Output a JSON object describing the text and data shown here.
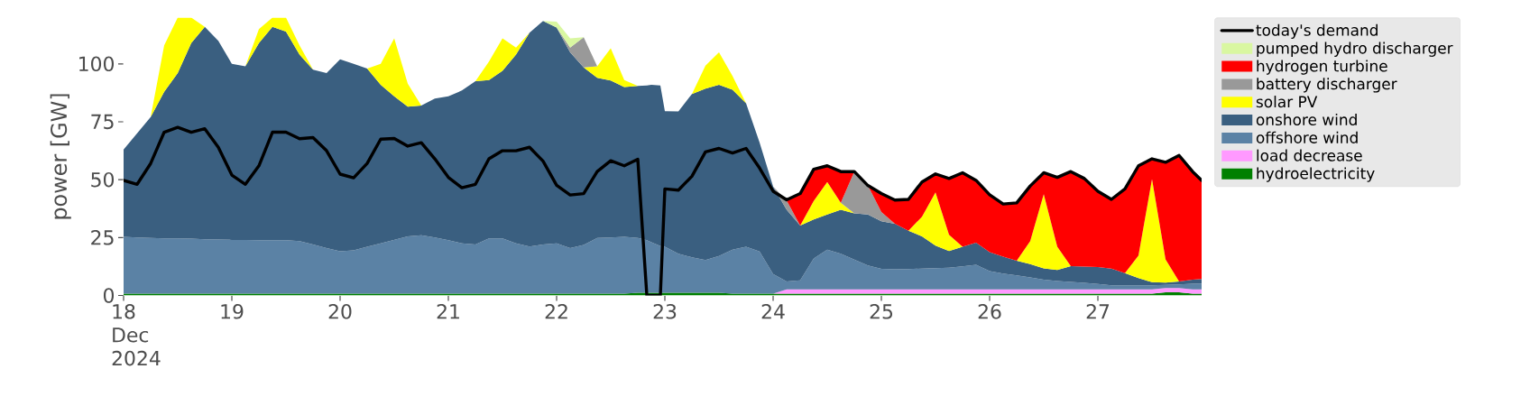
{
  "chart_data": {
    "type": "area",
    "stacked": true,
    "ylabel": "power [GW]",
    "legend": "right",
    "x": [
      "2024-12-18T00:00",
      "2024-12-18T03:00",
      "2024-12-18T06:00",
      "2024-12-18T09:00",
      "2024-12-18T12:00",
      "2024-12-18T15:00",
      "2024-12-18T18:00",
      "2024-12-18T21:00",
      "2024-12-19T00:00",
      "2024-12-19T03:00",
      "2024-12-19T06:00",
      "2024-12-19T09:00",
      "2024-12-19T12:00",
      "2024-12-19T15:00",
      "2024-12-19T18:00",
      "2024-12-19T21:00",
      "2024-12-20T00:00",
      "2024-12-20T03:00",
      "2024-12-20T06:00",
      "2024-12-20T09:00",
      "2024-12-20T12:00",
      "2024-12-20T15:00",
      "2024-12-20T18:00",
      "2024-12-20T21:00",
      "2024-12-21T00:00",
      "2024-12-21T03:00",
      "2024-12-21T06:00",
      "2024-12-21T09:00",
      "2024-12-21T12:00",
      "2024-12-21T15:00",
      "2024-12-21T18:00",
      "2024-12-21T21:00",
      "2024-12-22T00:00",
      "2024-12-22T03:00",
      "2024-12-22T06:00",
      "2024-12-22T09:00",
      "2024-12-22T12:00",
      "2024-12-22T15:00",
      "2024-12-22T18:00",
      "2024-12-22T20:00",
      "2024-12-22T21:00",
      "2024-12-22T23:00",
      "2024-12-23T00:00",
      "2024-12-23T03:00",
      "2024-12-23T06:00",
      "2024-12-23T09:00",
      "2024-12-23T12:00",
      "2024-12-23T15:00",
      "2024-12-23T18:00",
      "2024-12-23T21:00",
      "2024-12-24T00:00",
      "2024-12-24T03:00",
      "2024-12-24T06:00",
      "2024-12-24T09:00",
      "2024-12-24T12:00",
      "2024-12-24T15:00",
      "2024-12-24T18:00",
      "2024-12-24T21:00",
      "2024-12-25T00:00",
      "2024-12-25T03:00",
      "2024-12-25T06:00",
      "2024-12-25T09:00",
      "2024-12-25T12:00",
      "2024-12-25T15:00",
      "2024-12-25T18:00",
      "2024-12-25T21:00",
      "2024-12-26T00:00",
      "2024-12-26T03:00",
      "2024-12-26T06:00",
      "2024-12-26T09:00",
      "2024-12-26T12:00",
      "2024-12-26T15:00",
      "2024-12-26T18:00",
      "2024-12-26T21:00",
      "2024-12-27T00:00",
      "2024-12-27T03:00",
      "2024-12-27T06:00",
      "2024-12-27T09:00",
      "2024-12-27T12:00",
      "2024-12-27T15:00",
      "2024-12-27T18:00",
      "2024-12-27T21:00",
      "2024-12-27T23:00"
    ],
    "xlim": [
      "2024-12-18T00:00",
      "2024-12-27T23:00"
    ],
    "xticks": [
      {
        "value": "2024-12-18",
        "label": "18 Dec 2024"
      },
      {
        "value": "2024-12-19",
        "label": "19"
      },
      {
        "value": "2024-12-20",
        "label": "20"
      },
      {
        "value": "2024-12-21",
        "label": "21"
      },
      {
        "value": "2024-12-22",
        "label": "22"
      },
      {
        "value": "2024-12-23",
        "label": "23"
      },
      {
        "value": "2024-12-24",
        "label": "24"
      },
      {
        "value": "2024-12-25",
        "label": "25"
      },
      {
        "value": "2024-12-26",
        "label": "26"
      },
      {
        "value": "2024-12-27",
        "label": "27"
      }
    ],
    "ylim": [
      0,
      120
    ],
    "yticks": [
      0,
      25,
      50,
      75,
      100
    ],
    "series": [
      {
        "name": "hydroelectricity",
        "color": "#008000",
        "values": [
          0.8,
          0.8,
          0.8,
          0.8,
          0.8,
          0.8,
          0.8,
          0.8,
          0.8,
          0.8,
          0.8,
          0.8,
          0.8,
          0.8,
          0.8,
          0.8,
          0.8,
          0.8,
          0.8,
          0.8,
          0.8,
          0.8,
          0.8,
          0.8,
          0.8,
          0.8,
          0.8,
          0.8,
          0.8,
          0.8,
          0.8,
          0.8,
          0.8,
          0.8,
          0.8,
          0.8,
          0.8,
          0.8,
          1.2,
          1.2,
          1.2,
          1.2,
          1.2,
          1.2,
          1.2,
          1.2,
          1.2,
          0.8,
          0.8,
          0.8,
          0.8,
          0.8,
          0.8,
          0.8,
          0.8,
          0.8,
          0.8,
          0.8,
          0.8,
          0.8,
          0.8,
          0.8,
          0.8,
          0.8,
          0.8,
          0.8,
          0.8,
          0.8,
          0.8,
          0.8,
          0.8,
          0.8,
          0.8,
          0.8,
          0.8,
          0.8,
          0.8,
          0.8,
          0.8,
          1.4,
          1.4,
          0.8,
          0.8
        ]
      },
      {
        "name": "load decrease",
        "color": "#ff99ff",
        "values": [
          0,
          0,
          0,
          0,
          0,
          0,
          0,
          0,
          0,
          0,
          0,
          0,
          0,
          0,
          0,
          0,
          0,
          0,
          0,
          0,
          0,
          0,
          0,
          0,
          0,
          0,
          0,
          0,
          0,
          0,
          0,
          0,
          0,
          0,
          0,
          0,
          0,
          0,
          0,
          0,
          0,
          0,
          0,
          0,
          0,
          0,
          0,
          0,
          0,
          0,
          0,
          1.8,
          1.8,
          1.8,
          1.8,
          1.8,
          1.8,
          1.8,
          1.8,
          1.8,
          1.8,
          1.8,
          1.8,
          1.8,
          1.8,
          1.8,
          1.8,
          1.8,
          1.8,
          1.8,
          1.8,
          1.8,
          1.8,
          1.8,
          1.8,
          1.8,
          1.8,
          1.8,
          1.8,
          1.8,
          1.8,
          1.8,
          1.8
        ]
      },
      {
        "name": "offshore wind",
        "color": "#5b82a5",
        "values": [
          24.5,
          24.2,
          24,
          23.8,
          23.8,
          23.7,
          23.5,
          23.4,
          23.2,
          23.2,
          23.1,
          23.1,
          23.1,
          22.7,
          21.2,
          19.7,
          18.3,
          18.7,
          20.2,
          21.7,
          23.2,
          24.7,
          25.2,
          24.2,
          23.1,
          21.7,
          21.2,
          23.8,
          23.8,
          21.7,
          20.3,
          21.2,
          21.7,
          19.7,
          21,
          24,
          24.2,
          24.5,
          23.6,
          22.7,
          21.8,
          20.1,
          19.8,
          16.8,
          15.3,
          14.1,
          15.8,
          19,
          20.2,
          18.2,
          8.5,
          3.4,
          3.9,
          13.4,
          17.2,
          15.4,
          12.9,
          10.4,
          8.9,
          8.7,
          8.8,
          9,
          9.2,
          9.4,
          10,
          10.6,
          7.9,
          6.8,
          6.1,
          5.2,
          4.2,
          3.6,
          3.2,
          2.9,
          2.4,
          1.8,
          1.8,
          1.8,
          1.8,
          1.4,
          1.6,
          2.5,
          2.6
        ]
      },
      {
        "name": "onshore wind",
        "color": "#3a5f80",
        "values": [
          37.7,
          45,
          52.2,
          63.4,
          71.4,
          84.5,
          91.7,
          85.8,
          76,
          75,
          85.1,
          92.1,
          90.1,
          80.5,
          75.5,
          75.5,
          82.9,
          80.5,
          77,
          68.5,
          62,
          56,
          56,
          60,
          62.1,
          66,
          70.5,
          68.4,
          72.4,
          81.5,
          92.4,
          96.5,
          93.2,
          84.5,
          76.7,
          69.2,
          67.8,
          64.7,
          65.7,
          66.8,
          68,
          69.4,
          58.6,
          61.5,
          70.5,
          74,
          74,
          69,
          62,
          47,
          37.7,
          31,
          23.7,
          16.8,
          15.2,
          19,
          20,
          22,
          20.5,
          19.7,
          16.6,
          13.9,
          9.7,
          7.2,
          8.4,
          9.6,
          8.2,
          7.4,
          6.3,
          5.7,
          4.9,
          4.8,
          6.9,
          7,
          7.3,
          7.2,
          5.2,
          3.1,
          1.3,
          1,
          1.2,
          1.7,
          1.9
        ]
      },
      {
        "name": "solar PV",
        "color": "#ffff00",
        "values": [
          0,
          0,
          0,
          20,
          24,
          11,
          0,
          0,
          0,
          0,
          6,
          4,
          6,
          4,
          0,
          0,
          0,
          0,
          0,
          9,
          25,
          10,
          0,
          0,
          0,
          0,
          0,
          8,
          14,
          3,
          0,
          0,
          0,
          0,
          0,
          5,
          14,
          3,
          0,
          0,
          0,
          0,
          0,
          0,
          0,
          10,
          14,
          6,
          0,
          0,
          0,
          0,
          0,
          8,
          14,
          3,
          0,
          0,
          0,
          0,
          0,
          8.5,
          23,
          7,
          0,
          0,
          0,
          0,
          0,
          10,
          32,
          10,
          0,
          0,
          0,
          0,
          0,
          9.7,
          44.6,
          10,
          0,
          0,
          0
        ]
      },
      {
        "name": "battery discharger",
        "color": "#999999",
        "values": [
          null,
          null,
          null,
          null,
          null,
          null,
          null,
          null,
          null,
          null,
          null,
          null,
          null,
          null,
          null,
          null,
          null,
          null,
          null,
          null,
          null,
          null,
          null,
          null,
          null,
          null,
          null,
          null,
          null,
          null,
          null,
          null,
          0,
          2,
          13,
          0,
          null,
          null,
          null,
          null,
          null,
          null,
          null,
          null,
          null,
          null,
          null,
          null,
          null,
          null,
          0,
          4,
          0,
          null,
          null,
          0,
          18,
          12.5,
          4,
          0,
          null,
          null,
          null,
          null,
          null,
          null,
          null,
          null,
          null,
          null,
          null,
          null,
          null,
          null,
          null,
          null,
          null,
          null,
          null,
          null,
          null,
          null,
          null
        ]
      },
      {
        "name": "hydrogen turbine",
        "color": "#ff0000",
        "values": [
          null,
          null,
          null,
          null,
          null,
          null,
          null,
          null,
          null,
          null,
          null,
          null,
          null,
          null,
          null,
          null,
          null,
          null,
          null,
          null,
          null,
          null,
          null,
          null,
          null,
          null,
          null,
          null,
          null,
          null,
          null,
          null,
          null,
          null,
          null,
          null,
          null,
          null,
          null,
          null,
          null,
          null,
          null,
          null,
          null,
          null,
          null,
          null,
          null,
          null,
          null,
          0,
          13.8,
          13.7,
          7,
          13.5,
          0,
          0,
          8,
          10.2,
          13.5,
          15,
          8,
          24.3,
          32,
          26.9,
          24.8,
          22.7,
          25,
          23.8,
          9.3,
          30,
          40.8,
          38,
          32.7,
          29.9,
          36.4,
          38.8,
          8.7,
          41.9,
          54.5,
          46.7,
          42.6
        ]
      },
      {
        "name": "pumped hydro discharger",
        "color": "#d9f7a1",
        "values": [
          null,
          null,
          null,
          null,
          null,
          null,
          null,
          null,
          null,
          null,
          null,
          null,
          null,
          null,
          null,
          null,
          null,
          null,
          null,
          null,
          null,
          null,
          null,
          null,
          null,
          null,
          null,
          null,
          null,
          null,
          null,
          0,
          2.5,
          4,
          0,
          null,
          null,
          null,
          null,
          null,
          null,
          null,
          null,
          null,
          null,
          null,
          null,
          null,
          null,
          null,
          null,
          null,
          null,
          null,
          null,
          null,
          null,
          null,
          null,
          null,
          null,
          null,
          null,
          null,
          null,
          null,
          null,
          null,
          null,
          null,
          null,
          null,
          null,
          null,
          null,
          null,
          null,
          null,
          null,
          null,
          null,
          null,
          null
        ]
      },
      {
        "name": "today's demand",
        "type": "line",
        "color": "#000000",
        "values": [
          49.7,
          48,
          57,
          70.5,
          72.6,
          70.5,
          72,
          64,
          52,
          48,
          56,
          70.5,
          70.5,
          67.7,
          68.2,
          62.5,
          52.4,
          50.8,
          57,
          67.5,
          67.8,
          64.5,
          66,
          59,
          51,
          46.5,
          48,
          59,
          62.5,
          62.5,
          64,
          58,
          47.6,
          43.4,
          44,
          53.5,
          58.2,
          56,
          58.8,
          0,
          0,
          0,
          46,
          45.5,
          51.5,
          62,
          63.5,
          61.5,
          63.5,
          55,
          45,
          41.3,
          44,
          54.5,
          56,
          53.5,
          53.5,
          47.5,
          44,
          41.2,
          41.5,
          49,
          52.5,
          50.5,
          53,
          49.7,
          43.5,
          39.5,
          40,
          47.3,
          53,
          51,
          53.5,
          50.5,
          45,
          41.5,
          46,
          56,
          59,
          57.5,
          60.5,
          53.5,
          49.7
        ]
      }
    ]
  }
}
